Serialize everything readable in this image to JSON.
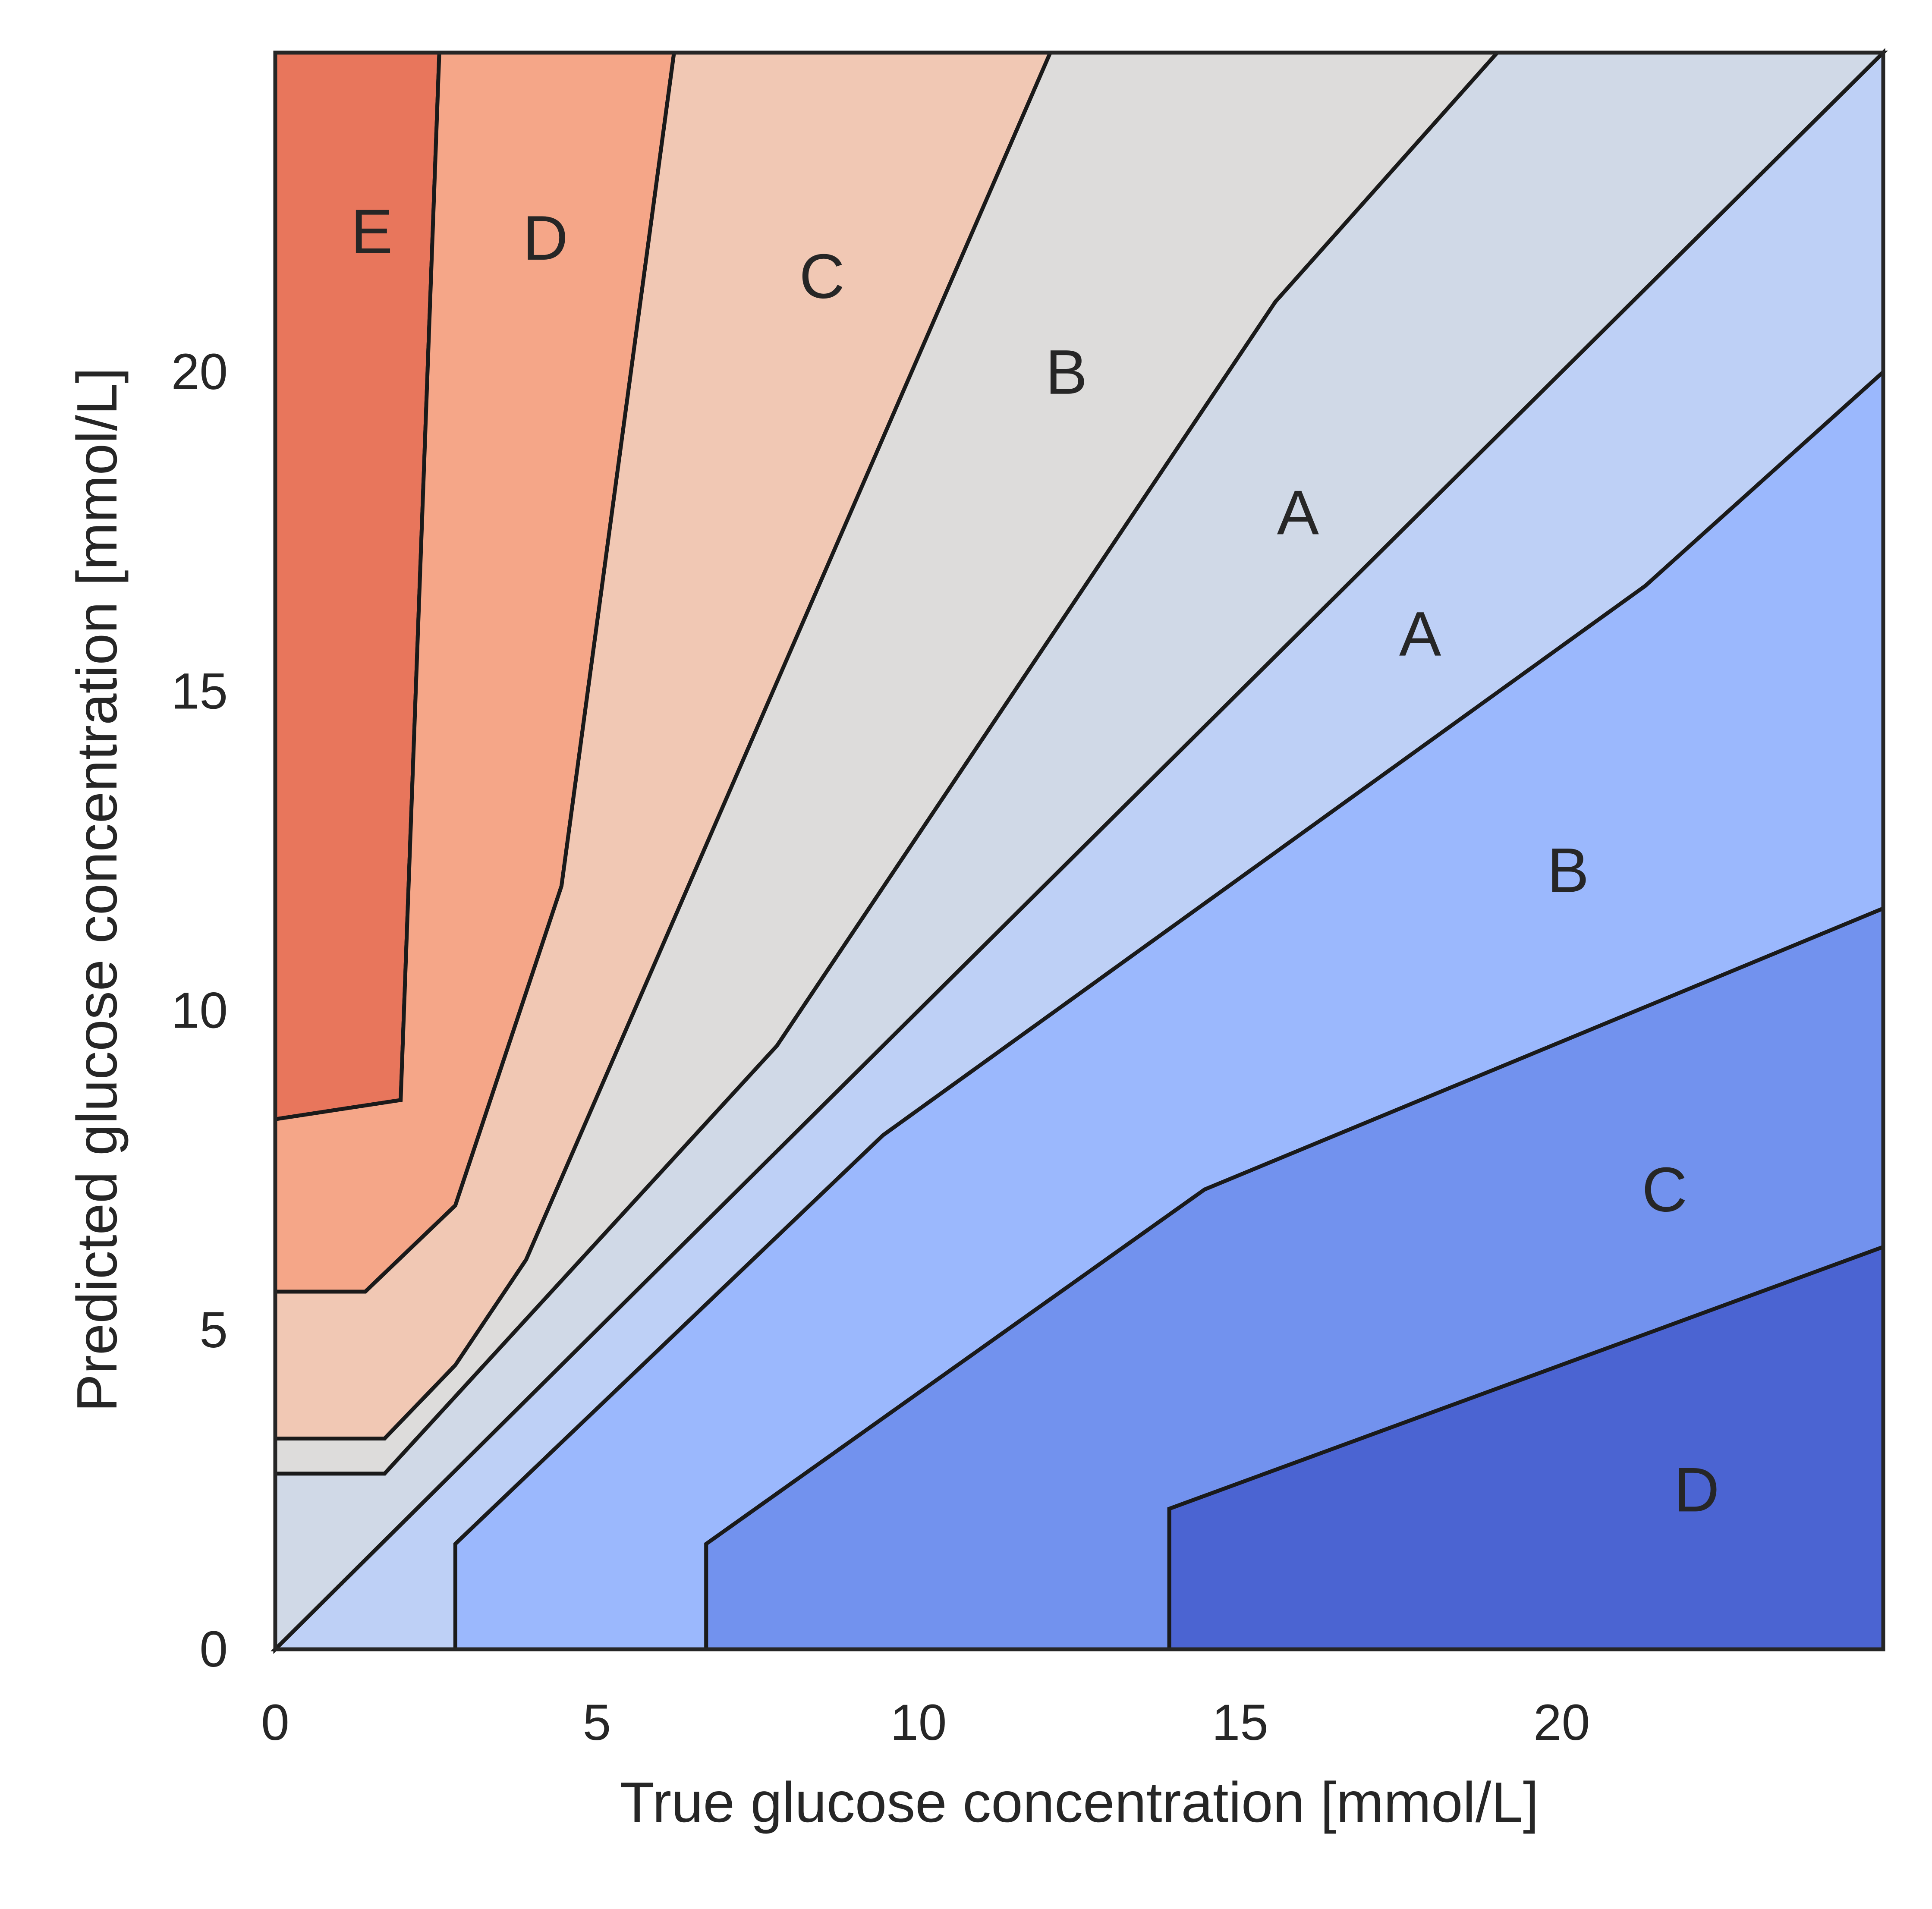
{
  "chart_data": {
    "type": "area",
    "xlabel": "True glucose concentration [mmol/L]",
    "ylabel": "Predicted glucose concentration [mmol/L]",
    "xlim": [
      0,
      25
    ],
    "ylim": [
      0,
      25
    ],
    "xticks": [
      "0",
      "5",
      "10",
      "15",
      "20"
    ],
    "yticks": [
      "0",
      "5",
      "10",
      "15",
      "20"
    ],
    "grid": false,
    "regions": [
      {
        "zone": "E",
        "color": "#e8765c",
        "polygon": [
          [
            0,
            25
          ],
          [
            2.55,
            25
          ],
          [
            1.95,
            8.6
          ],
          [
            0,
            8.3
          ]
        ]
      },
      {
        "zone": "D",
        "color": "#f5a688",
        "polygon": [
          [
            0,
            8.3
          ],
          [
            1.95,
            8.6
          ],
          [
            2.55,
            25
          ],
          [
            6.2,
            25
          ],
          [
            4.45,
            11.95
          ],
          [
            2.8,
            6.95
          ],
          [
            1.4,
            5.6
          ],
          [
            0,
            5.6
          ]
        ]
      },
      {
        "zone": "C",
        "color": "#f1c8b4",
        "polygon": [
          [
            0,
            5.6
          ],
          [
            1.4,
            5.6
          ],
          [
            2.8,
            6.95
          ],
          [
            4.45,
            11.95
          ],
          [
            6.2,
            25
          ],
          [
            12.05,
            25
          ],
          [
            3.9,
            6.1
          ],
          [
            2.8,
            4.45
          ],
          [
            1.7,
            3.3
          ],
          [
            0,
            3.3
          ]
        ]
      },
      {
        "zone": "B",
        "color": "#dddcdb",
        "polygon": [
          [
            0,
            3.3
          ],
          [
            1.7,
            3.3
          ],
          [
            2.8,
            4.45
          ],
          [
            3.9,
            6.1
          ],
          [
            12.05,
            25
          ],
          [
            19,
            25
          ],
          [
            15.55,
            21.1
          ],
          [
            7.8,
            9.45
          ],
          [
            1.7,
            2.75
          ],
          [
            0,
            2.75
          ]
        ]
      },
      {
        "zone": "A",
        "color": "#d0d9e7",
        "polygon": [
          [
            0,
            2.75
          ],
          [
            1.7,
            2.75
          ],
          [
            7.8,
            9.45
          ],
          [
            15.55,
            21.1
          ],
          [
            19,
            25
          ],
          [
            25,
            25
          ],
          [
            0,
            0
          ]
        ]
      },
      {
        "zone": "A",
        "color": "#bed0f6",
        "polygon": [
          [
            0,
            0
          ],
          [
            25,
            25
          ],
          [
            25,
            20
          ],
          [
            21.3,
            16.65
          ],
          [
            9.45,
            8.05
          ],
          [
            2.8,
            1.65
          ],
          [
            2.8,
            0
          ]
        ]
      },
      {
        "zone": "B",
        "color": "#9bb8fd",
        "polygon": [
          [
            2.8,
            0
          ],
          [
            2.8,
            1.65
          ],
          [
            9.45,
            8.05
          ],
          [
            21.3,
            16.65
          ],
          [
            25,
            20
          ],
          [
            25,
            11.6
          ],
          [
            14.45,
            7.2
          ],
          [
            6.7,
            1.65
          ],
          [
            6.7,
            0
          ]
        ]
      },
      {
        "zone": "C",
        "color": "#7292ee",
        "polygon": [
          [
            6.7,
            0
          ],
          [
            6.7,
            1.65
          ],
          [
            14.45,
            7.2
          ],
          [
            25,
            11.6
          ],
          [
            25,
            6.3
          ],
          [
            13.9,
            2.2
          ],
          [
            13.9,
            0
          ]
        ]
      },
      {
        "zone": "D",
        "color": "#4b64d2",
        "polygon": [
          [
            13.9,
            0
          ],
          [
            13.9,
            2.2
          ],
          [
            25,
            6.3
          ],
          [
            25,
            0
          ]
        ]
      }
    ],
    "zone_labels": [
      {
        "text": "E",
        "x": 1.5,
        "y": 22.2
      },
      {
        "text": "D",
        "x": 4.2,
        "y": 22.1
      },
      {
        "text": "C",
        "x": 8.5,
        "y": 21.5
      },
      {
        "text": "B",
        "x": 12.3,
        "y": 20.0
      },
      {
        "text": "A",
        "x": 15.9,
        "y": 17.8
      },
      {
        "text": "A",
        "x": 17.8,
        "y": 15.9
      },
      {
        "text": "B",
        "x": 20.1,
        "y": 12.2
      },
      {
        "text": "C",
        "x": 21.6,
        "y": 7.2
      },
      {
        "text": "D",
        "x": 22.1,
        "y": 2.5
      }
    ]
  }
}
